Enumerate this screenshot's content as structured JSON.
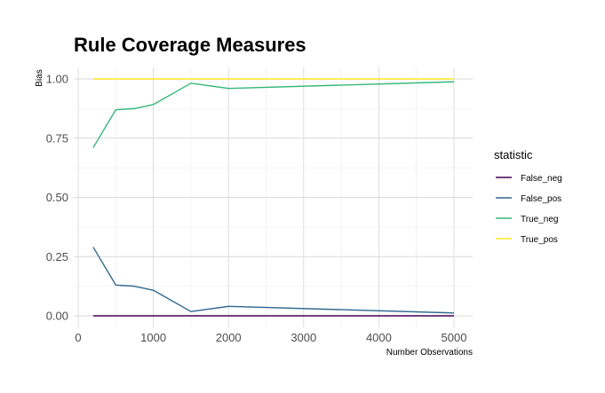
{
  "chart_data": {
    "type": "line",
    "title": "Rule Coverage Measures",
    "xlabel": "Number Observations",
    "ylabel": "Bias",
    "xlim": [
      0,
      5000
    ],
    "ylim": [
      0,
      1
    ],
    "x_ticks": [
      0,
      1000,
      2000,
      3000,
      4000,
      5000
    ],
    "x_tick_labels": [
      "0",
      "1000",
      "2000",
      "3000",
      "4000",
      "5000"
    ],
    "y_ticks": [
      0,
      0.25,
      0.5,
      0.75,
      1
    ],
    "y_tick_labels": [
      "0.00",
      "0.25",
      "0.50",
      "0.75",
      "1.00"
    ],
    "grid": true,
    "legend_title": "statistic",
    "legend_position": "right",
    "x": [
      200,
      500,
      750,
      1000,
      1500,
      2000,
      5000
    ],
    "series": [
      {
        "name": "False_neg",
        "color": "#440154",
        "values": [
          0.0,
          0.0,
          0.0,
          0.0,
          0.0,
          0.0,
          0.0
        ]
      },
      {
        "name": "False_pos",
        "color": "#31688e",
        "values": [
          0.29,
          0.13,
          0.125,
          0.108,
          0.018,
          0.04,
          0.012
        ]
      },
      {
        "name": "True_neg",
        "color": "#35b779",
        "values": [
          0.71,
          0.87,
          0.875,
          0.892,
          0.982,
          0.96,
          0.988
        ]
      },
      {
        "name": "True_pos",
        "color": "#fde725",
        "values": [
          1.0,
          1.0,
          1.0,
          1.0,
          1.0,
          1.0,
          1.0
        ]
      }
    ]
  }
}
